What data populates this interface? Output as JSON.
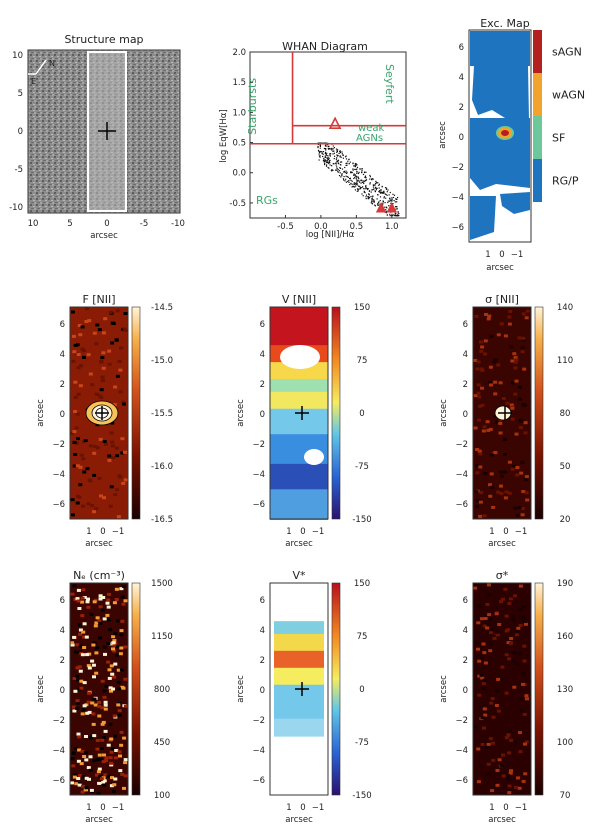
{
  "panels": {
    "structure": {
      "title": "Structure map",
      "xticks": [
        "10",
        "5",
        "0",
        "-5",
        "-10"
      ],
      "yticks": [
        "10",
        "5",
        "0",
        "-5",
        "-10"
      ],
      "xlabel": "arcsec",
      "compass_n": "N",
      "compass_e": "E"
    },
    "whan": {
      "title": "WHAN Diagram",
      "xlabel": "log [NII]/Hα",
      "ylabel": "log EqW[Hα]",
      "region_starbursts": "Starbursts",
      "region_seyfert": "Seyfert",
      "region_weak": "weak",
      "region_agns": "AGNs",
      "region_rgs": "RGs"
    },
    "exc": {
      "title": "Exc. Map",
      "xlabel": "arcsec",
      "ylabel": "arcsec",
      "xticks": [
        "1",
        "0",
        "−1"
      ],
      "yticks": [
        "6",
        "4",
        "2",
        "0",
        "−2",
        "−4",
        "−6"
      ],
      "legend": [
        "sAGN",
        "wAGN",
        "SF",
        "RG/P"
      ]
    },
    "fnii": {
      "title": "F [NII]",
      "xlabel": "arcsec",
      "ylabel": "arcsec",
      "xticks": [
        "1",
        "0",
        "−1"
      ],
      "yticks": [
        "6",
        "4",
        "2",
        "0",
        "−2",
        "−4",
        "−6"
      ],
      "cbar": [
        "-14.5",
        "-15.0",
        "-15.5",
        "-16.0",
        "-16.5"
      ]
    },
    "vnii": {
      "title": "V [NII]",
      "xlabel": "arcsec",
      "ylabel": "arcsec",
      "xticks": [
        "1",
        "0",
        "−1"
      ],
      "yticks": [
        "6",
        "4",
        "2",
        "0",
        "−2",
        "−4",
        "−6"
      ],
      "cbar": [
        "150",
        "75",
        "0",
        "-75",
        "-150"
      ]
    },
    "snii": {
      "title": "σ [NII]",
      "xlabel": "arcsec",
      "ylabel": "arcsec",
      "xticks": [
        "1",
        "0",
        "−1"
      ],
      "yticks": [
        "6",
        "4",
        "2",
        "0",
        "−2",
        "−4",
        "−6"
      ],
      "cbar": [
        "140",
        "110",
        "80",
        "50",
        "20"
      ]
    },
    "ne": {
      "title": "Nₑ (cm⁻³)",
      "xlabel": "arcsec",
      "ylabel": "arcsec",
      "xticks": [
        "1",
        "0",
        "−1"
      ],
      "yticks": [
        "6",
        "4",
        "2",
        "0",
        "−2",
        "−4",
        "−6"
      ],
      "cbar": [
        "1500",
        "1150",
        "800",
        "450",
        "100"
      ]
    },
    "vstar": {
      "title": "V*",
      "xlabel": "arcsec",
      "ylabel": "arcsec",
      "xticks": [
        "1",
        "0",
        "−1"
      ],
      "yticks": [
        "6",
        "4",
        "2",
        "0",
        "−2",
        "−4",
        "−6"
      ],
      "cbar": [
        "150",
        "75",
        "0",
        "-75",
        "-150"
      ]
    },
    "sstar": {
      "title": "σ*",
      "xlabel": "arcsec",
      "ylabel": "arcsec",
      "xticks": [
        "1",
        "0",
        "−1"
      ],
      "yticks": [
        "6",
        "4",
        "2",
        "0",
        "−2",
        "−4",
        "−6"
      ],
      "cbar": [
        "190",
        "160",
        "130",
        "100",
        "70"
      ]
    }
  },
  "colors": {
    "sAGN": "#b32020",
    "wAGN": "#f2a32e",
    "SF": "#6cc79a",
    "RGP": "#1f74c0",
    "whan_lines": "#d43a3a"
  },
  "chart_data": [
    {
      "type": "scatter",
      "title": "WHAN Diagram",
      "xlabel": "log [NII]/Hα",
      "ylabel": "log EqW[Hα]",
      "xlim": [
        -1.0,
        1.2
      ],
      "ylim": [
        -0.75,
        2.0
      ],
      "xticks": [
        -0.5,
        0.0,
        0.5,
        1.0
      ],
      "yticks": [
        -0.5,
        0.0,
        0.5,
        1.0,
        1.5,
        2.0
      ],
      "boundaries": {
        "vertical_x": -0.4,
        "horizontal_y1": 0.48,
        "horizontal_y2": 0.78
      },
      "highlighted_points": [
        [
          0.2,
          0.82
        ],
        [
          0.85,
          -0.58
        ],
        [
          1.0,
          -0.58
        ]
      ],
      "point_cloud": {
        "x_range": [
          -0.05,
          1.1
        ],
        "y_range": [
          -0.7,
          0.5
        ],
        "trend": "decreasing"
      }
    },
    {
      "type": "heatmap",
      "title": "Exc. Map",
      "categories": [
        "sAGN",
        "wAGN",
        "SF",
        "RG/P"
      ]
    }
  ]
}
